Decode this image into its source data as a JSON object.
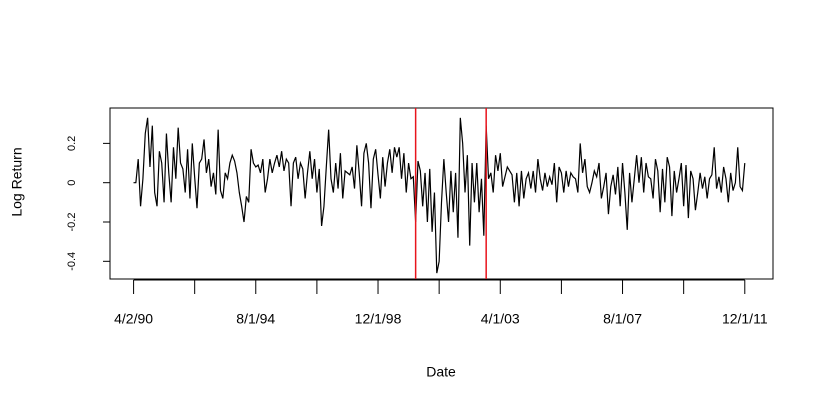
{
  "chart_data": {
    "type": "line",
    "x_label": "Date",
    "y_label": "Log Return",
    "x": [
      "1990-04",
      "1990-05",
      "1990-06",
      "1990-07",
      "1990-08",
      "1990-09",
      "1990-10",
      "1990-11",
      "1990-12",
      "1991-01",
      "1991-02",
      "1991-03",
      "1991-04",
      "1991-05",
      "1991-06",
      "1991-07",
      "1991-08",
      "1991-09",
      "1991-10",
      "1991-11",
      "1991-12",
      "1992-01",
      "1992-02",
      "1992-03",
      "1992-04",
      "1992-05",
      "1992-06",
      "1992-07",
      "1992-08",
      "1992-09",
      "1992-10",
      "1992-11",
      "1992-12",
      "1993-01",
      "1993-02",
      "1993-03",
      "1993-04",
      "1993-05",
      "1993-06",
      "1993-07",
      "1993-08",
      "1993-09",
      "1993-10",
      "1993-11",
      "1993-12",
      "1994-01",
      "1994-02",
      "1994-03",
      "1994-04",
      "1994-05",
      "1994-06",
      "1994-07",
      "1994-08",
      "1994-09",
      "1994-10",
      "1994-11",
      "1994-12",
      "1995-01",
      "1995-02",
      "1995-03",
      "1995-04",
      "1995-05",
      "1995-06",
      "1995-07",
      "1995-08",
      "1995-09",
      "1995-10",
      "1995-11",
      "1995-12",
      "1996-01",
      "1996-02",
      "1996-03",
      "1996-04",
      "1996-05",
      "1996-06",
      "1996-07",
      "1996-08",
      "1996-09",
      "1996-10",
      "1996-11",
      "1996-12",
      "1997-01",
      "1997-02",
      "1997-03",
      "1997-04",
      "1997-05",
      "1997-06",
      "1997-07",
      "1997-08",
      "1997-09",
      "1997-10",
      "1997-11",
      "1997-12",
      "1998-01",
      "1998-02",
      "1998-03",
      "1998-04",
      "1998-05",
      "1998-06",
      "1998-07",
      "1998-08",
      "1998-09",
      "1998-10",
      "1998-11",
      "1998-12",
      "1999-01",
      "1999-02",
      "1999-03",
      "1999-04",
      "1999-05",
      "1999-06",
      "1999-07",
      "1999-08",
      "1999-09",
      "1999-10",
      "1999-11",
      "1999-12",
      "2000-01",
      "2000-02",
      "2000-03",
      "2000-04",
      "2000-05",
      "2000-06",
      "2000-07",
      "2000-08",
      "2000-09",
      "2000-10",
      "2000-11",
      "2000-12",
      "2001-01",
      "2001-02",
      "2001-03",
      "2001-04",
      "2001-05",
      "2001-06",
      "2001-07",
      "2001-08",
      "2001-09",
      "2001-10",
      "2001-11",
      "2001-12",
      "2002-01",
      "2002-02",
      "2002-03",
      "2002-04",
      "2002-05",
      "2002-06",
      "2002-07",
      "2002-08",
      "2002-09",
      "2002-10",
      "2002-11",
      "2002-12",
      "2003-01",
      "2003-02",
      "2003-03",
      "2003-04",
      "2003-05",
      "2003-06",
      "2003-07",
      "2003-08",
      "2003-09",
      "2003-10",
      "2003-11",
      "2003-12",
      "2004-01",
      "2004-02",
      "2004-03",
      "2004-04",
      "2004-05",
      "2004-06",
      "2004-07",
      "2004-08",
      "2004-09",
      "2004-10",
      "2004-11",
      "2004-12",
      "2005-01",
      "2005-02",
      "2005-03",
      "2005-04",
      "2005-05",
      "2005-06",
      "2005-07",
      "2005-08",
      "2005-09",
      "2005-10",
      "2005-11",
      "2005-12",
      "2006-01",
      "2006-02",
      "2006-03",
      "2006-04",
      "2006-05",
      "2006-06",
      "2006-07",
      "2006-08",
      "2006-09",
      "2006-10",
      "2006-11",
      "2006-12",
      "2007-01",
      "2007-02",
      "2007-03",
      "2007-04",
      "2007-05",
      "2007-06",
      "2007-07",
      "2007-08",
      "2007-09",
      "2007-10",
      "2007-11",
      "2007-12",
      "2008-01",
      "2008-02",
      "2008-03",
      "2008-04",
      "2008-05",
      "2008-06",
      "2008-07",
      "2008-08",
      "2008-09",
      "2008-10",
      "2008-11",
      "2008-12",
      "2009-01",
      "2009-02",
      "2009-03",
      "2009-04",
      "2009-05",
      "2009-06",
      "2009-07",
      "2009-08",
      "2009-09",
      "2009-10",
      "2009-11",
      "2009-12",
      "2010-01",
      "2010-02",
      "2010-03",
      "2010-04",
      "2010-05",
      "2010-06",
      "2010-07",
      "2010-08",
      "2010-09",
      "2010-10",
      "2010-11",
      "2010-12",
      "2011-01",
      "2011-02",
      "2011-03",
      "2011-04",
      "2011-05",
      "2011-06",
      "2011-07",
      "2011-08",
      "2011-09",
      "2011-10",
      "2011-11",
      "2011-12"
    ],
    "series": [
      {
        "color": "#000000",
        "values": [
          0,
          0,
          0.12,
          -0.12,
          0.02,
          0.25,
          0.33,
          0.08,
          0.29,
          -0.05,
          -0.12,
          0.16,
          0.1,
          -0.1,
          0.25,
          0.05,
          -0.1,
          0.18,
          0.02,
          0.28,
          0.1,
          0.07,
          -0.05,
          0.17,
          -0.08,
          0.2,
          0.03,
          -0.13,
          0.1,
          0.12,
          0.22,
          0.05,
          0.12,
          -0.02,
          0.05,
          -0.06,
          0.27,
          -0.04,
          -0.08,
          0.05,
          0.02,
          0.1,
          0.14,
          0.11,
          0.05,
          -0.05,
          -0.12,
          -0.2,
          -0.07,
          -0.1,
          0.17,
          0.1,
          0.08,
          0.09,
          0.05,
          0.12,
          -0.05,
          0.02,
          0.12,
          0.05,
          0.1,
          0.14,
          0.08,
          0.16,
          0.06,
          0.12,
          0.1,
          -0.12,
          0.1,
          0.13,
          0.02,
          0.1,
          0.07,
          -0.08,
          0.05,
          0.16,
          0.02,
          0.12,
          -0.05,
          0.07,
          -0.22,
          -0.12,
          0.08,
          0.27,
          0.02,
          -0.05,
          0.1,
          -0.03,
          0.15,
          -0.08,
          0.06,
          0.05,
          0.04,
          0.08,
          -0.03,
          0.19,
          0.05,
          -0.12,
          0.15,
          0.2,
          0.1,
          -0.13,
          0.12,
          0.17,
          0.04,
          -0.08,
          0.13,
          -0.02,
          0.1,
          0.17,
          0.05,
          0.18,
          0.13,
          0.18,
          0.02,
          0.15,
          -0.05,
          0.1,
          0.02,
          0.03,
          -0.2,
          0.11,
          0.06,
          -0.12,
          0.05,
          -0.2,
          0.07,
          -0.25,
          -0.05,
          -0.46,
          -0.4,
          -0.1,
          0.12,
          -0.05,
          -0.2,
          0.06,
          -0.15,
          0.05,
          -0.28,
          0.33,
          0.2,
          -0.05,
          0.14,
          -0.32,
          0.1,
          -0.1,
          0.1,
          -0.15,
          0.02,
          -0.27,
          0.29,
          0.02,
          0.05,
          -0.05,
          0.14,
          0.06,
          0.15,
          -0.02,
          0.03,
          0.08,
          0.06,
          0.04,
          -0.1,
          0.05,
          -0.12,
          0.06,
          -0.08,
          0.02,
          0.05,
          -0.03,
          0.06,
          -0.05,
          0.12,
          0.02,
          -0.04,
          0.05,
          -0.02,
          0.03,
          -0.01,
          0.1,
          -0.1,
          0.08,
          0.05,
          -0.05,
          0.06,
          -0.02,
          0.05,
          0.03,
          0.02,
          -0.05,
          0.2,
          0.05,
          0.12,
          -0.02,
          -0.05,
          0,
          0.06,
          0.03,
          0.1,
          -0.08,
          -0.02,
          0.05,
          -0.16,
          -0.02,
          0.04,
          -0.06,
          0.08,
          -0.12,
          0.1,
          -0.05,
          -0.24,
          0.05,
          -0.1,
          0.02,
          0.14,
          0,
          0.13,
          -0.05,
          0.1,
          0.03,
          0.02,
          -0.08,
          0.12,
          0.06,
          -0.15,
          0.07,
          -0.1,
          0.13,
          0.08,
          -0.17,
          0.06,
          -0.05,
          0.02,
          0.1,
          -0.12,
          0.09,
          -0.18,
          0.06,
          0.02,
          -0.14,
          -0.05,
          0.05,
          -0.03,
          0.03,
          -0.08,
          0.02,
          0.04,
          0.18,
          -0.03,
          0.03,
          -0.05,
          0.08,
          0.02,
          -0.1,
          0.05,
          -0.04,
          0,
          0.18,
          -0.02,
          -0.04,
          0.1
        ]
      }
    ],
    "reference_lines": {
      "color": "#e8141c",
      "x": [
        "2000-04",
        "2002-10"
      ]
    },
    "xlim": [
      "1989-06",
      "2012-12"
    ],
    "xticks": [
      {
        "value": "1990-04-02",
        "label": "4/2/90"
      },
      {
        "value": "1994-08-01",
        "label": "8/1/94"
      },
      {
        "value": "1998-12-01",
        "label": "12/1/98"
      },
      {
        "value": "2003-04-01",
        "label": "4/1/03"
      },
      {
        "value": "2007-08-01",
        "label": "8/1/07"
      },
      {
        "value": "2011-12-01",
        "label": "12/1/11"
      }
    ],
    "ylim": [
      -0.49,
      0.38
    ],
    "yticks": [
      -0.4,
      -0.2,
      0,
      0.2
    ]
  }
}
